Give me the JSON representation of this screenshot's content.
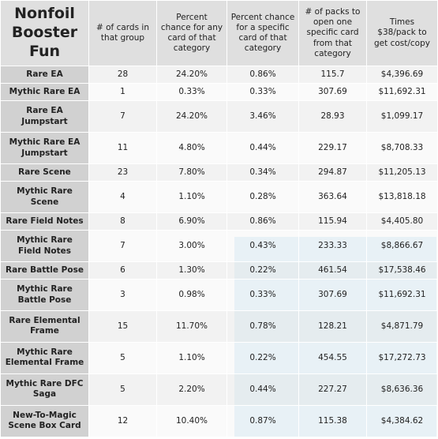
{
  "table": {
    "headers": [
      "Nonfoil Booster Fun",
      "# of cards in that group",
      "Percent chance for any card of that category",
      "Percent chance for a specific card of that category",
      "# of packs to open one specific card from that category",
      "Times $38/pack to get cost/copy"
    ],
    "rows": [
      [
        "Rare EA",
        "28",
        "24.20%",
        "0.86%",
        "115.7",
        "$4,396.69"
      ],
      [
        "Mythic Rare EA",
        "1",
        "0.33%",
        "0.33%",
        "307.69",
        "$11,692.31"
      ],
      [
        "Rare EA Jumpstart",
        "7",
        "24.20%",
        "3.46%",
        "28.93",
        "$1,099.17"
      ],
      [
        "Mythic Rare EA Jumpstart",
        "11",
        "4.80%",
        "0.44%",
        "229.17",
        "$8,708.33"
      ],
      [
        "Rare Scene",
        "23",
        "7.80%",
        "0.34%",
        "294.87",
        "$11,205.13"
      ],
      [
        "Mythic Rare Scene",
        "4",
        "1.10%",
        "0.28%",
        "363.64",
        "$13,818.18"
      ],
      [
        "Rare Field Notes",
        "8",
        "6.90%",
        "0.86%",
        "115.94",
        "$4,405.80"
      ],
      [
        "Mythic Rare Field Notes",
        "7",
        "3.00%",
        "0.43%",
        "233.33",
        "$8,866.67"
      ],
      [
        "Rare Battle Pose",
        "6",
        "1.30%",
        "0.22%",
        "461.54",
        "$17,538.46"
      ],
      [
        "Mythic Rare Battle Pose",
        "3",
        "0.98%",
        "0.33%",
        "307.69",
        "$11,692.31"
      ],
      [
        "Rare Elemental Frame",
        "15",
        "11.70%",
        "0.78%",
        "128.21",
        "$4,871.79"
      ],
      [
        "Mythic Rare Elemental Frame",
        "5",
        "1.10%",
        "0.22%",
        "454.55",
        "$17,272.73"
      ],
      [
        "Mythic Rare DFC Saga",
        "5",
        "2.20%",
        "0.44%",
        "227.27",
        "$8,636.36"
      ],
      [
        "New-To-Magic Scene Box Card",
        "12",
        "10.40%",
        "0.87%",
        "115.38",
        "$4,384.62"
      ]
    ]
  }
}
